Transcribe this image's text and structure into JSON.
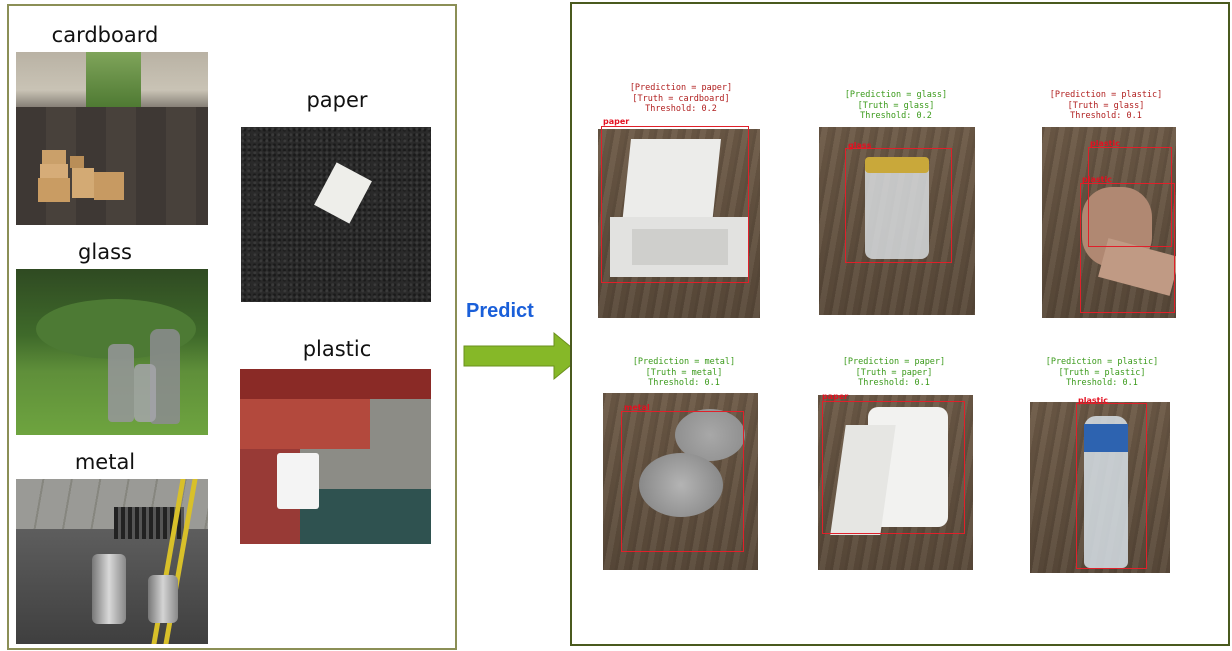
{
  "left_panel": {
    "categories": [
      {
        "key": "cardboard",
        "label": "cardboard"
      },
      {
        "key": "glass",
        "label": "glass"
      },
      {
        "key": "metal",
        "label": "metal"
      },
      {
        "key": "paper",
        "label": "paper"
      },
      {
        "key": "plastic",
        "label": "plastic"
      }
    ]
  },
  "arrow": {
    "label": "Predict",
    "color": "#86b828",
    "label_color": "#1a5fd9"
  },
  "predictions": [
    {
      "prediction_line": "[Prediction = paper]",
      "truth_line": "[Truth = cardboard]",
      "threshold_line": "Threshold: 0.2",
      "box_labels": [
        "paper"
      ],
      "correct": false
    },
    {
      "prediction_line": "[Prediction = glass]",
      "truth_line": "[Truth = glass]",
      "threshold_line": "Threshold: 0.2",
      "box_labels": [
        "glass"
      ],
      "correct": true
    },
    {
      "prediction_line": "[Prediction = plastic]",
      "truth_line": "[Truth = glass]",
      "threshold_line": "Threshold: 0.1",
      "box_labels": [
        "plastic",
        "plastic"
      ],
      "correct": false
    },
    {
      "prediction_line": "[Prediction = metal]",
      "truth_line": "[Truth = metal]",
      "threshold_line": "Threshold: 0.1",
      "box_labels": [
        "metal"
      ],
      "correct": true
    },
    {
      "prediction_line": "[Prediction = paper]",
      "truth_line": "[Truth = paper]",
      "threshold_line": "Threshold: 0.1",
      "box_labels": [
        "paper"
      ],
      "correct": true
    },
    {
      "prediction_line": "[Prediction = plastic]",
      "truth_line": "[Truth = plastic]",
      "threshold_line": "Threshold: 0.1",
      "box_labels": [
        "plastic"
      ],
      "correct": true
    }
  ],
  "colors": {
    "correct": "#3a9a1a",
    "incorrect": "#b01e1e",
    "bbox": "#e0202a",
    "left_border": "#8b8f56",
    "right_border": "#4a5a1e"
  }
}
